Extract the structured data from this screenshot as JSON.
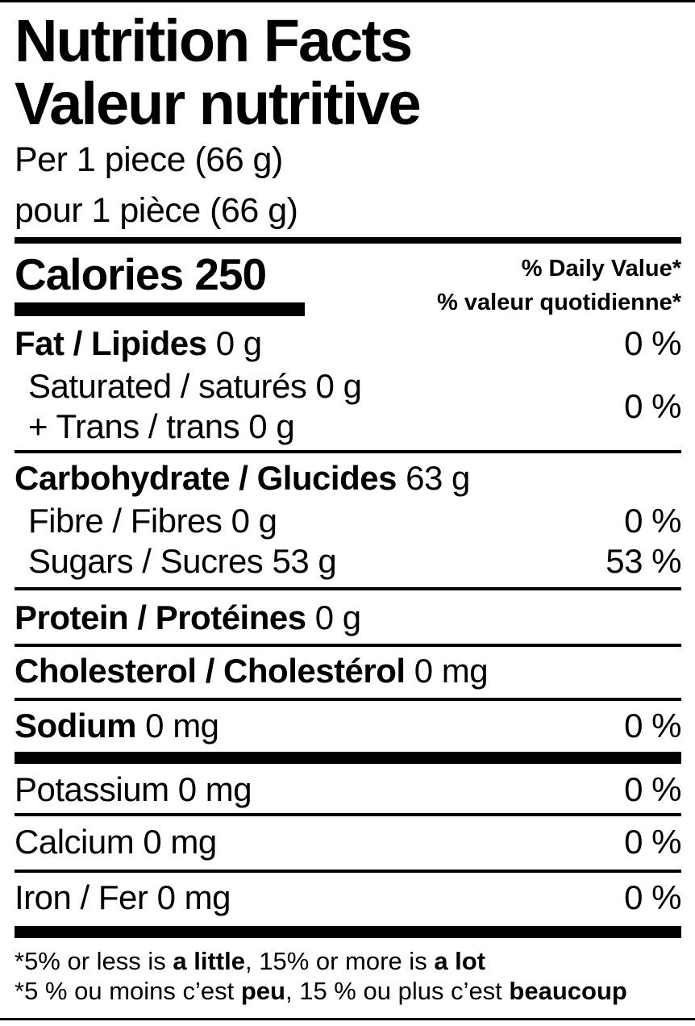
{
  "colors": {
    "ink": "#000000",
    "paper": "#ffffff"
  },
  "header": {
    "title_en": "Nutrition Facts",
    "title_fr": "Valeur nutritive",
    "serving_en": "Per 1 piece (66 g)",
    "serving_fr": "pour 1 pièce (66 g)"
  },
  "calories": {
    "label": "Calories",
    "value": "250"
  },
  "daily_value_header": {
    "en": "% Daily Value*",
    "fr": "% valeur quotidienne*"
  },
  "nutrients": {
    "fat": {
      "label": "Fat / Lipides",
      "amount": "0 g",
      "dv": "0 %"
    },
    "saturated": {
      "label": "Saturated / saturés",
      "amount": "0 g"
    },
    "trans": {
      "label": "+ Trans / trans",
      "amount": "0 g",
      "dv": "0 %"
    },
    "carbohydrate": {
      "label": "Carbohydrate / Glucides",
      "amount": "63 g"
    },
    "fibre": {
      "label": "Fibre / Fibres",
      "amount": "0 g",
      "dv": "0 %"
    },
    "sugars": {
      "label": "Sugars / Sucres",
      "amount": "53 g",
      "dv": "53 %"
    },
    "protein": {
      "label": "Protein / Protéines",
      "amount": "0 g"
    },
    "cholesterol": {
      "label": "Cholesterol / Cholestérol",
      "amount": "0 mg"
    },
    "sodium": {
      "label": "Sodium",
      "amount": "0 mg",
      "dv": "0 %"
    },
    "potassium": {
      "label": "Potassium",
      "amount": "0 mg",
      "dv": "0 %"
    },
    "calcium": {
      "label": "Calcium",
      "amount": "0 mg",
      "dv": "0 %"
    },
    "iron": {
      "label": "Iron / Fer",
      "amount": "0 mg",
      "dv": "0 %"
    }
  },
  "footnotes": {
    "en": {
      "pre": "*5% or less is ",
      "term1": "a little",
      "mid": ", 15% or more is ",
      "term2": "a lot"
    },
    "fr": {
      "pre": "*5 % ou moins c’est ",
      "term1": "peu",
      "mid": ", 15 % ou plus c’est ",
      "term2": "beaucoup"
    }
  }
}
